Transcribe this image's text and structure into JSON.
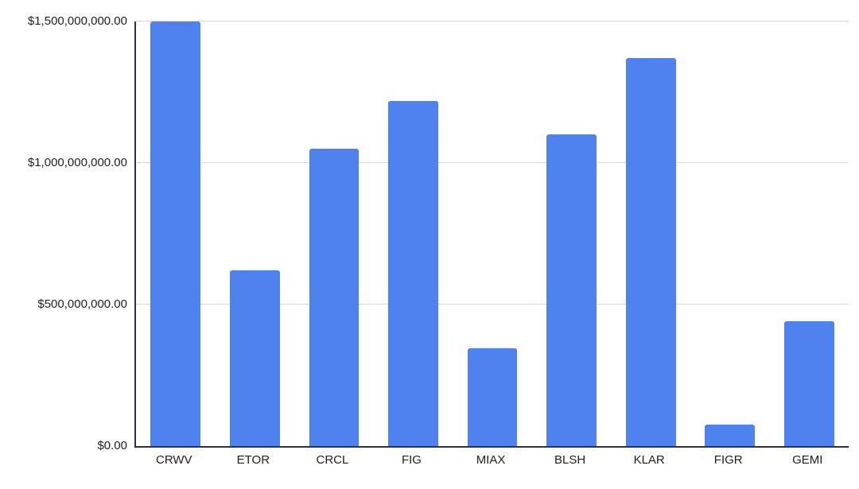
{
  "chart_data": {
    "type": "bar",
    "title": "",
    "xlabel": "",
    "ylabel": "",
    "categories": [
      "CRWV",
      "ETOR",
      "CRCL",
      "FIG",
      "MIAX",
      "BLSH",
      "KLAR",
      "FIGR",
      "GEMI"
    ],
    "values": [
      1500000000,
      620000000,
      1050000000,
      1220000000,
      345000000,
      1100000000,
      1370000000,
      75000000,
      440000000
    ],
    "ylim": [
      0,
      1500000000
    ],
    "y_ticks": [
      {
        "value": 0,
        "label": "$0.00"
      },
      {
        "value": 500000000,
        "label": "$500,000,000.00"
      },
      {
        "value": 1000000000,
        "label": "$1,000,000,000.00"
      },
      {
        "value": 1500000000,
        "label": "$1,500,000,000.00"
      }
    ],
    "grid": true,
    "legend": "none",
    "colors": {
      "bar": "#4e82ee",
      "background": "#ffffff",
      "gridline": "#d9d9d9",
      "axis_line": "#333333",
      "label": "#222222"
    }
  }
}
